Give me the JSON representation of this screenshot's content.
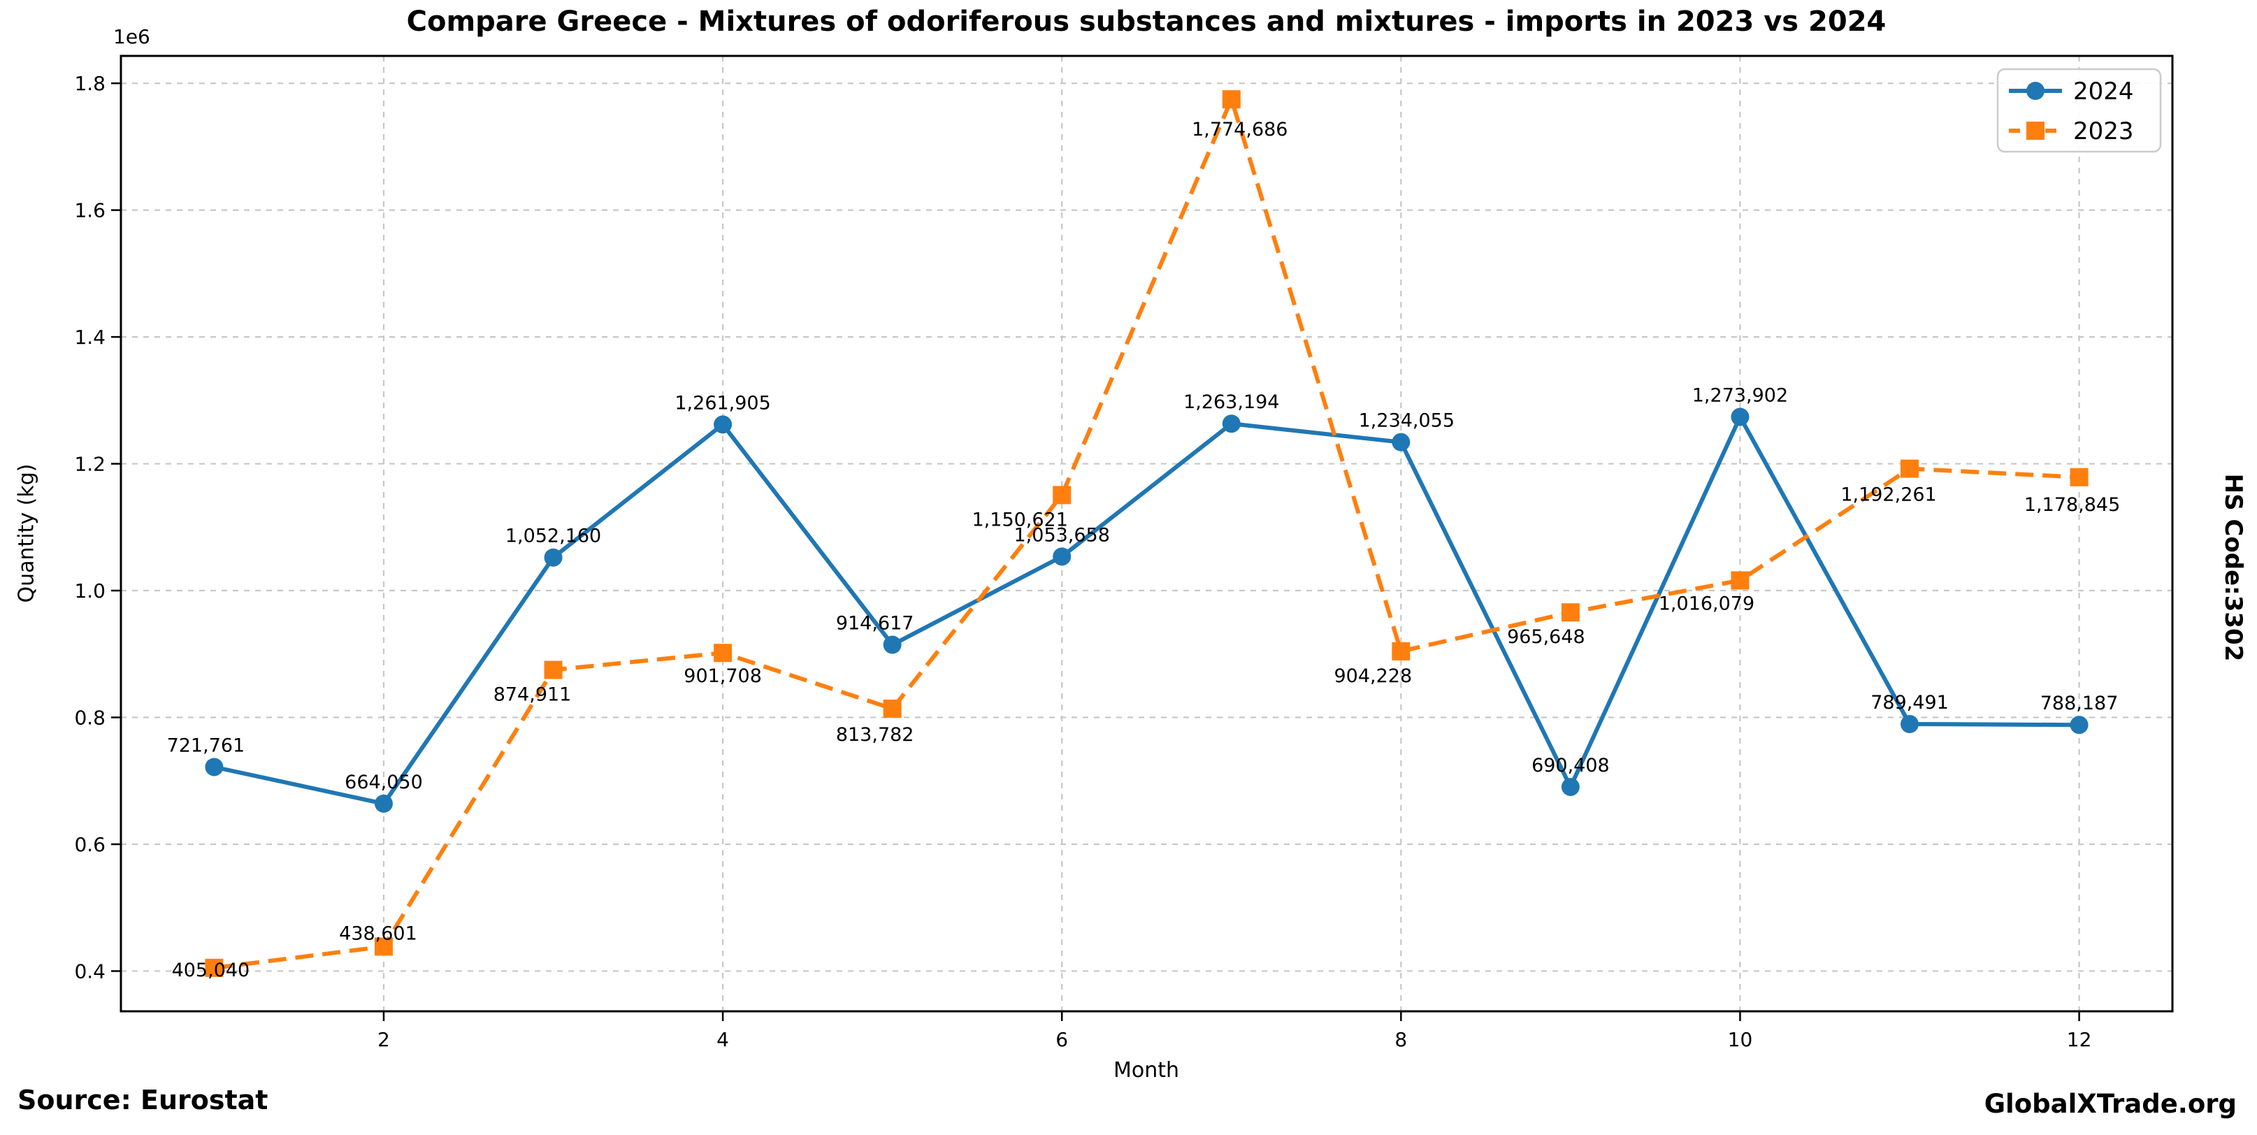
{
  "title": "Compare Greece - Mixtures of odoriferous substances and mixtures - imports in 2023 vs 2024",
  "footer": {
    "source": "Source: Eurostat",
    "brand": "GlobalXTrade.org"
  },
  "right_label": "HS Code:3302",
  "axis_offset_text": "1e6",
  "chart_data": {
    "type": "line",
    "title": "Compare Greece - Mixtures of odoriferous substances and mixtures - imports in 2023 vs 2024",
    "xlabel": "Month",
    "ylabel": "Quantity (kg)",
    "x": [
      1,
      2,
      3,
      4,
      5,
      6,
      7,
      8,
      9,
      10,
      11,
      12
    ],
    "xticks": [
      2,
      4,
      6,
      8,
      10,
      12
    ],
    "xtick_labels": [
      "2",
      "4",
      "6",
      "8",
      "10",
      "12"
    ],
    "yticks": [
      400000,
      600000,
      800000,
      1000000,
      1200000,
      1400000,
      1600000,
      1800000
    ],
    "ytick_labels": [
      "0.4",
      "0.6",
      "0.8",
      "1.0",
      "1.2",
      "1.4",
      "1.6",
      "1.8"
    ],
    "y_multiplier_label": "1e6",
    "xlim": [
      0.45,
      12.55
    ],
    "ylim": [
      336558,
      1843168
    ],
    "grid": true,
    "grid_color": "#c7c7c7",
    "legend_position": "upper right",
    "background": "#ffffff",
    "value_label_format": "thousands-comma",
    "series": [
      {
        "name": "2024",
        "color": "#1f77b4",
        "line_style": "solid",
        "marker": "circle",
        "values": [
          721761,
          664050,
          1052160,
          1261905,
          914617,
          1053658,
          1263194,
          1234055,
          690408,
          1273902,
          789491,
          788187
        ],
        "label_offsets": [
          [
            -12,
            -22
          ],
          [
            0,
            -22
          ],
          [
            0,
            -22
          ],
          [
            0,
            -22
          ],
          [
            -25,
            -22
          ],
          [
            0,
            -22
          ],
          [
            0,
            -22
          ],
          [
            8,
            -22
          ],
          [
            0,
            -22
          ],
          [
            0,
            -22
          ],
          [
            0,
            -22
          ],
          [
            0,
            -22
          ]
        ]
      },
      {
        "name": "2023",
        "color": "#ff7f0e",
        "line_style": "dashed",
        "marker": "square",
        "values": [
          405040,
          438601,
          874911,
          901708,
          813782,
          1150621,
          1774686,
          904228,
          965648,
          1016079,
          1192261,
          1178845
        ],
        "label_offsets": [
          [
            -5,
            12
          ],
          [
            -8,
            -10
          ],
          [
            -30,
            44
          ],
          [
            0,
            42
          ],
          [
            -25,
            46
          ],
          [
            -60,
            44
          ],
          [
            12,
            52
          ],
          [
            -40,
            44
          ],
          [
            -35,
            44
          ],
          [
            -48,
            42
          ],
          [
            -30,
            46
          ],
          [
            -10,
            48
          ]
        ]
      }
    ]
  }
}
